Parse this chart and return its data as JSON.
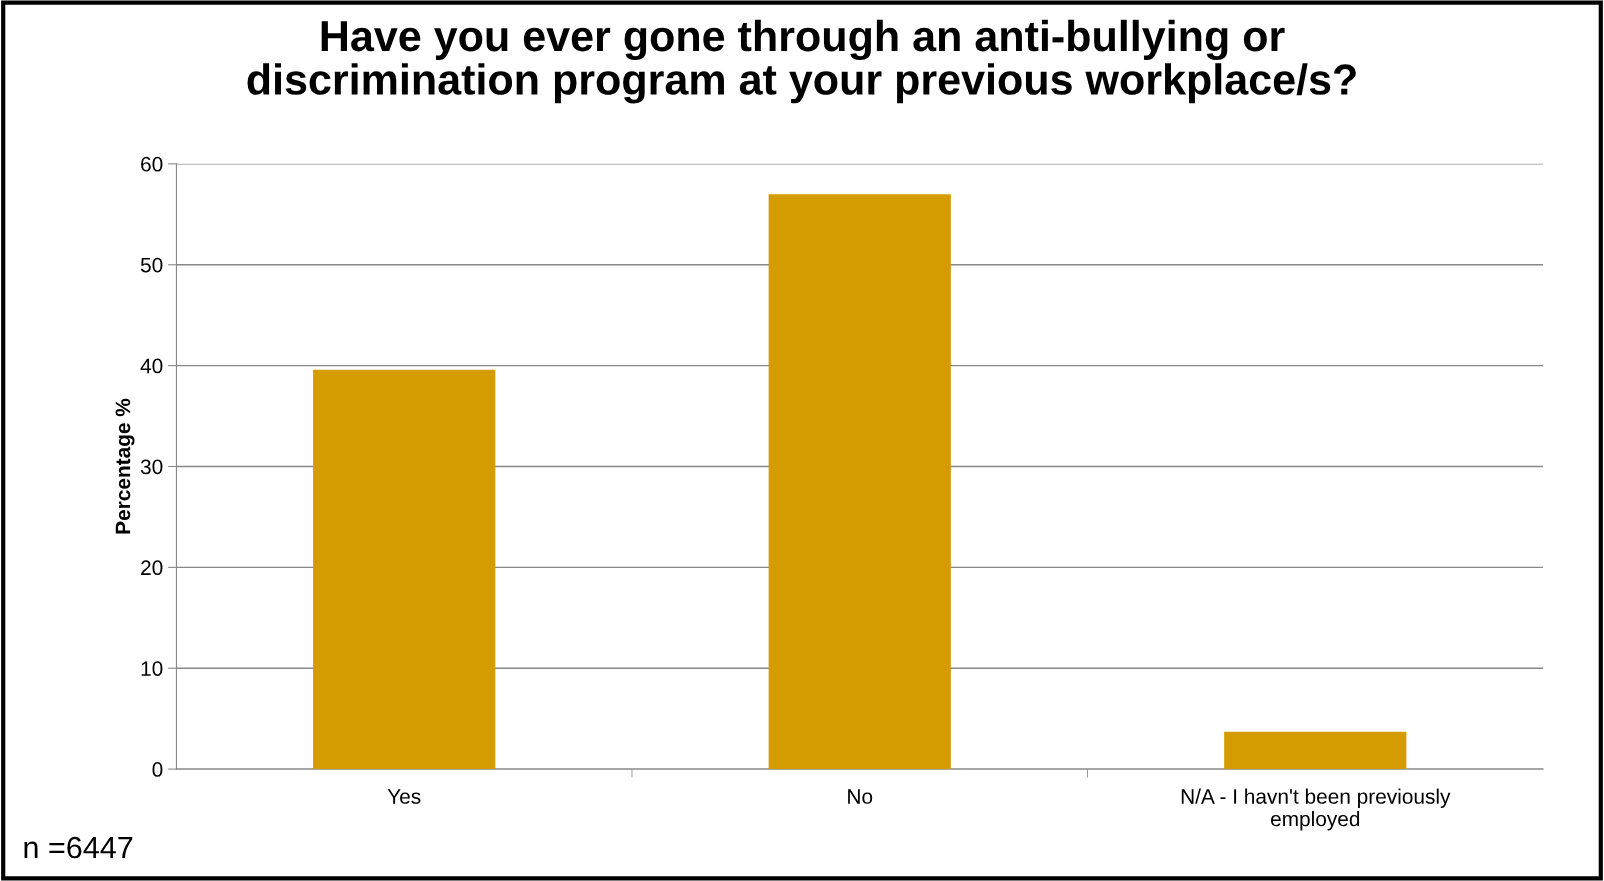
{
  "chart_data": {
    "type": "bar",
    "title": "Have you ever gone through an anti-bullying or\ndiscrimination program at your previous workplace/s?",
    "ylabel": "Percentage %",
    "categories": [
      "Yes",
      "No",
      "N/A - I havn't been previously\nemployed"
    ],
    "values": [
      39.6,
      57.0,
      3.7
    ],
    "color": "#d49c00",
    "ylim": [
      0,
      60
    ],
    "yticks": [
      0,
      10,
      20,
      30,
      40,
      50,
      60
    ],
    "grid": "y",
    "legend": false,
    "annotations": [
      "n =6447"
    ]
  }
}
